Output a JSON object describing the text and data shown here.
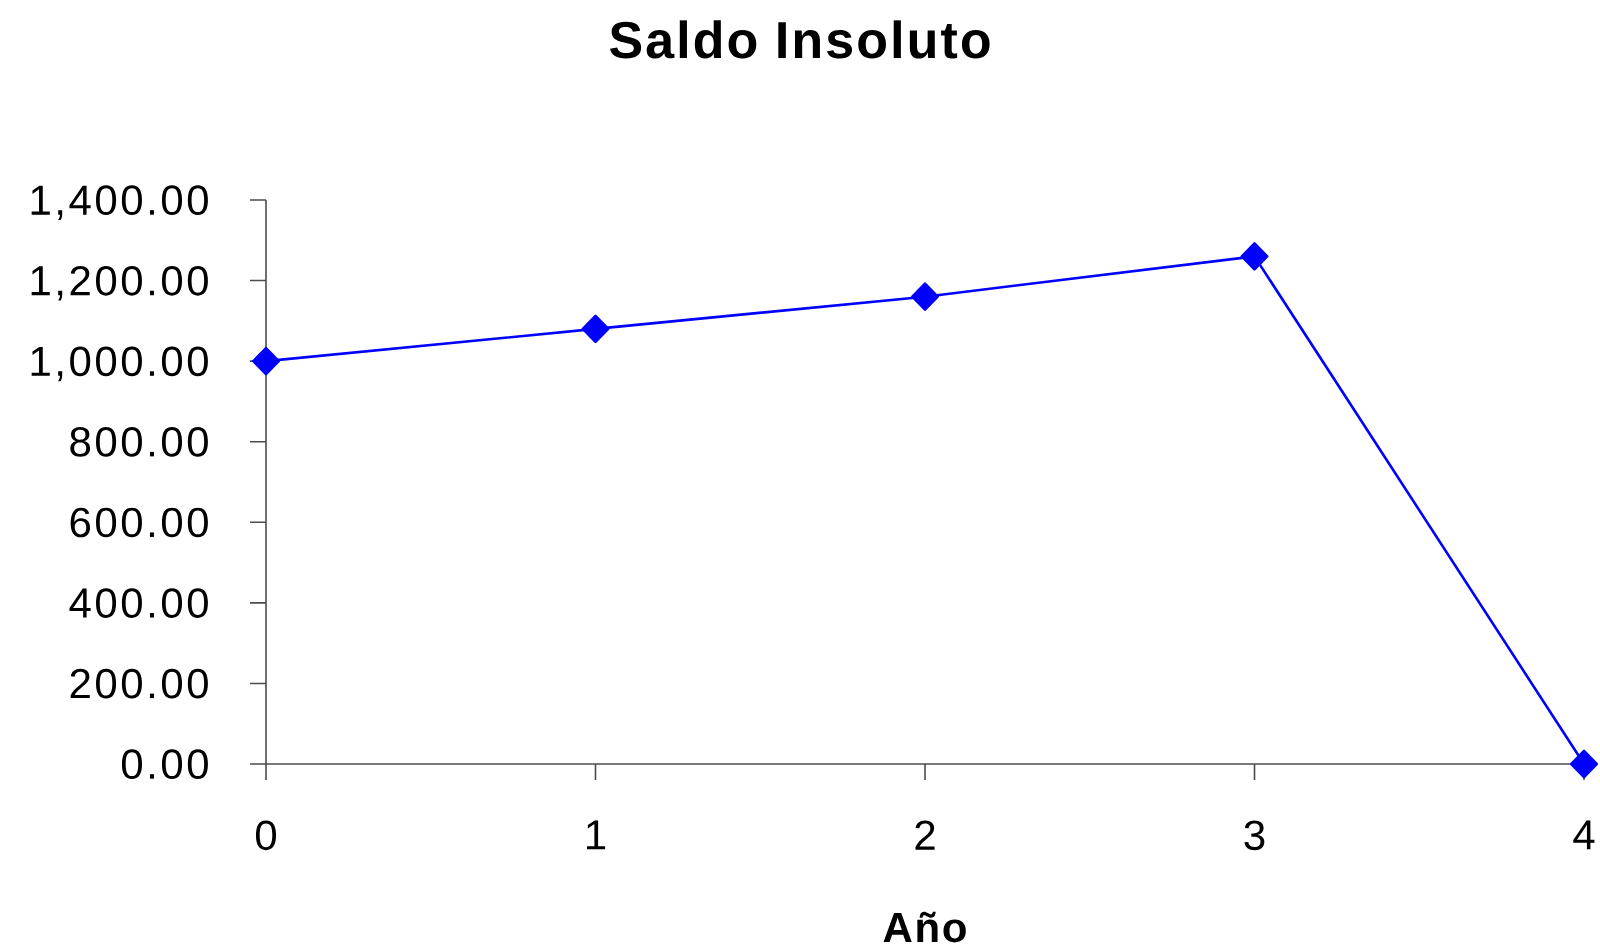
{
  "chart_data": {
    "type": "line",
    "title": "Saldo Insoluto",
    "xlabel": "Año",
    "x": [
      0,
      1,
      2,
      3,
      4
    ],
    "series": [
      {
        "color": "#0000ff",
        "values": [
          1000,
          1080,
          1160,
          1260,
          0
        ]
      }
    ],
    "xlim": [
      0,
      4
    ],
    "ylim": [
      0,
      1400
    ],
    "xticks": [
      0,
      1,
      2,
      3,
      4
    ],
    "yticks": [
      {
        "value": 0,
        "label": "0.00"
      },
      {
        "value": 200,
        "label": "200.00"
      },
      {
        "value": 400,
        "label": "400.00"
      },
      {
        "value": 600,
        "label": "600.00"
      },
      {
        "value": 800,
        "label": "800.00"
      },
      {
        "value": 1000,
        "label": "1,000.00"
      },
      {
        "value": 1200,
        "label": "1,200.00"
      },
      {
        "value": 1400,
        "label": "1,400.00"
      }
    ],
    "marker": "diamond",
    "line_style": "solid"
  }
}
